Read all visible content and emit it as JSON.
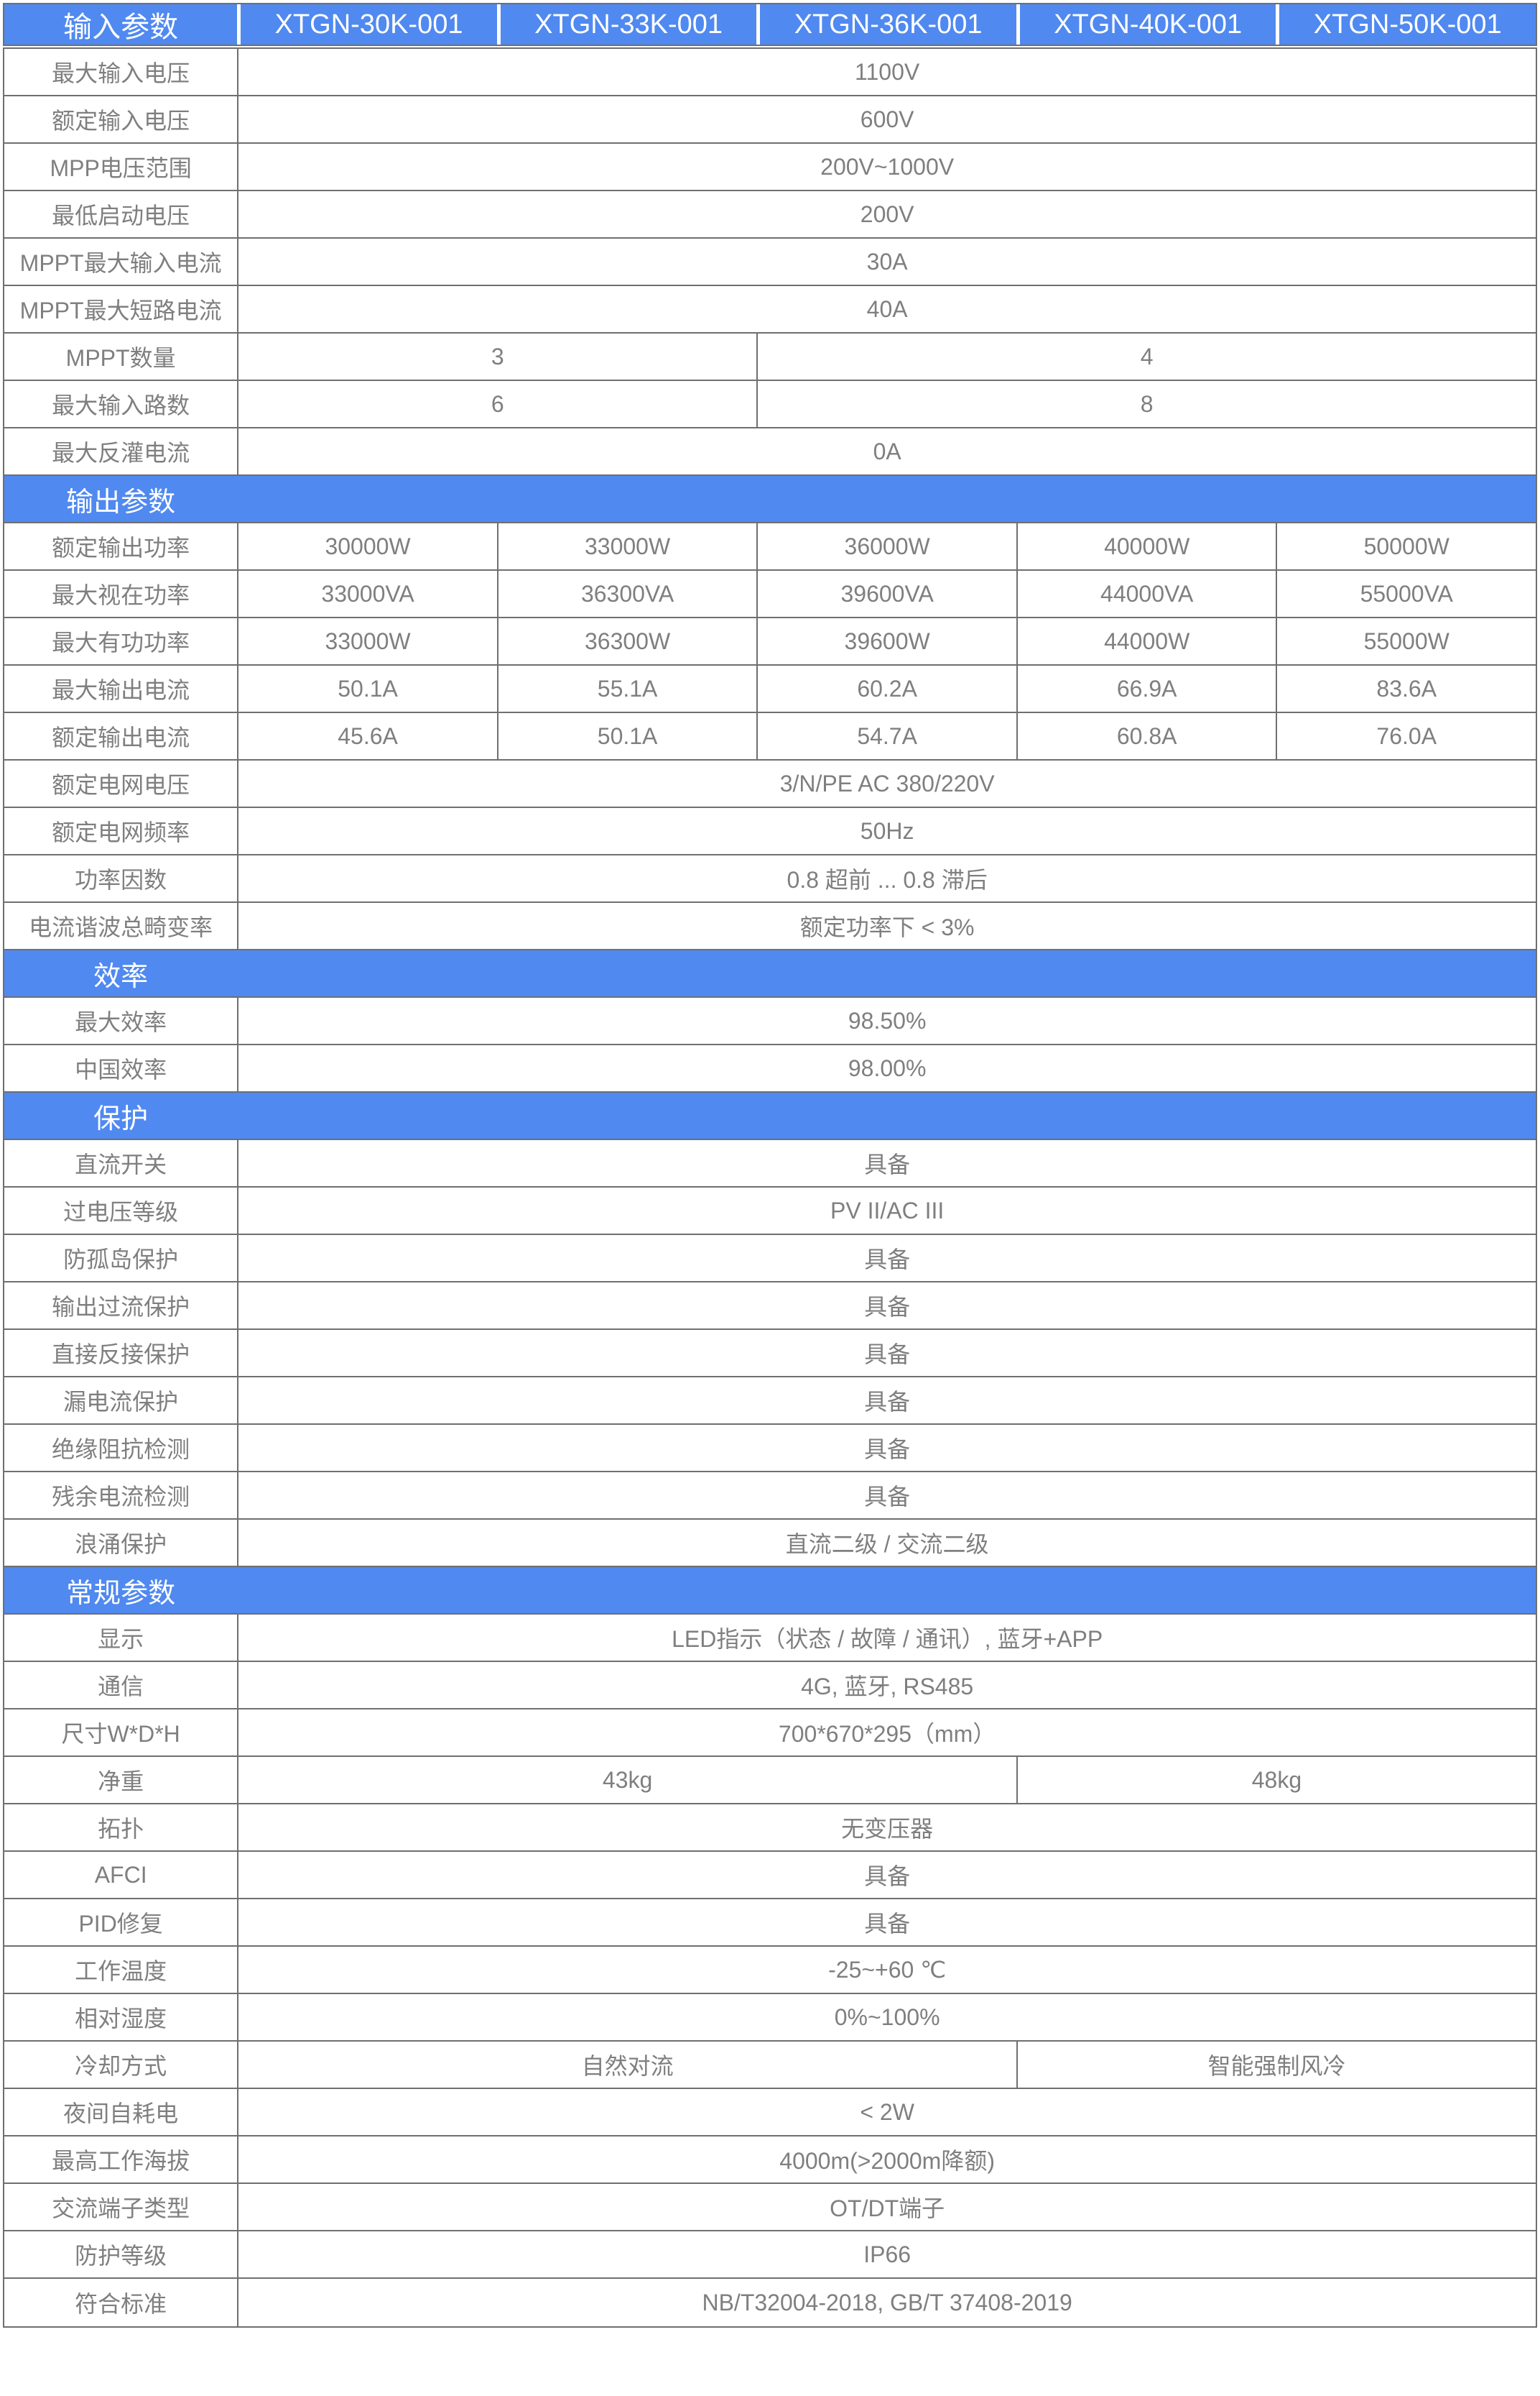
{
  "colors": {
    "accent_blue": "#5089f0",
    "grid_line": "#6f6f6f",
    "cell_text": "#7f7f7f",
    "header_text": "#ffffff"
  },
  "table": {
    "header": {
      "title": "输入参数",
      "models": [
        "XTGN-30K-001",
        "XTGN-33K-001",
        "XTGN-36K-001",
        "XTGN-40K-001",
        "XTGN-50K-001"
      ]
    },
    "groups": [
      {
        "section": null,
        "rows": [
          {
            "label": "最大输入电压",
            "cells": [
              {
                "text": "1100V",
                "span": 5
              }
            ]
          },
          {
            "label": "额定输入电压",
            "cells": [
              {
                "text": "600V",
                "span": 5
              }
            ]
          },
          {
            "label": "MPP电压范围",
            "cells": [
              {
                "text": "200V~1000V",
                "span": 5
              }
            ]
          },
          {
            "label": "最低启动电压",
            "cells": [
              {
                "text": "200V",
                "span": 5
              }
            ]
          },
          {
            "label": "MPPT最大输入电流",
            "cells": [
              {
                "text": "30A",
                "span": 5
              }
            ]
          },
          {
            "label": "MPPT最大短路电流",
            "cells": [
              {
                "text": "40A",
                "span": 5
              }
            ]
          },
          {
            "label": "MPPT数量",
            "cells": [
              {
                "text": "3",
                "span": 2
              },
              {
                "text": "4",
                "span": 3
              }
            ]
          },
          {
            "label": "最大输入路数",
            "cells": [
              {
                "text": "6",
                "span": 2
              },
              {
                "text": "8",
                "span": 3
              }
            ]
          },
          {
            "label": "最大反灌电流",
            "cells": [
              {
                "text": "0A",
                "span": 5
              }
            ]
          }
        ]
      },
      {
        "section": "输出参数",
        "rows": [
          {
            "label": "额定输出功率",
            "cells": [
              {
                "text": "30000W",
                "span": 1
              },
              {
                "text": "33000W",
                "span": 1
              },
              {
                "text": "36000W",
                "span": 1
              },
              {
                "text": "40000W",
                "span": 1
              },
              {
                "text": "50000W",
                "span": 1
              }
            ]
          },
          {
            "label": "最大视在功率",
            "cells": [
              {
                "text": "33000VA",
                "span": 1
              },
              {
                "text": "36300VA",
                "span": 1
              },
              {
                "text": "39600VA",
                "span": 1
              },
              {
                "text": "44000VA",
                "span": 1
              },
              {
                "text": "55000VA",
                "span": 1
              }
            ]
          },
          {
            "label": "最大有功功率",
            "cells": [
              {
                "text": "33000W",
                "span": 1
              },
              {
                "text": "36300W",
                "span": 1
              },
              {
                "text": "39600W",
                "span": 1
              },
              {
                "text": "44000W",
                "span": 1
              },
              {
                "text": "55000W",
                "span": 1
              }
            ]
          },
          {
            "label": "最大输出电流",
            "cells": [
              {
                "text": "50.1A",
                "span": 1
              },
              {
                "text": "55.1A",
                "span": 1
              },
              {
                "text": "60.2A",
                "span": 1
              },
              {
                "text": "66.9A",
                "span": 1
              },
              {
                "text": "83.6A",
                "span": 1
              }
            ]
          },
          {
            "label": "额定输出电流",
            "cells": [
              {
                "text": "45.6A",
                "span": 1
              },
              {
                "text": "50.1A",
                "span": 1
              },
              {
                "text": "54.7A",
                "span": 1
              },
              {
                "text": "60.8A",
                "span": 1
              },
              {
                "text": "76.0A",
                "span": 1
              }
            ]
          },
          {
            "label": "额定电网电压",
            "cells": [
              {
                "text": "3/N/PE AC 380/220V",
                "span": 5
              }
            ]
          },
          {
            "label": "额定电网频率",
            "cells": [
              {
                "text": "50Hz",
                "span": 5
              }
            ]
          },
          {
            "label": "功率因数",
            "cells": [
              {
                "text": "0.8 超前 ... 0.8 滞后",
                "span": 5
              }
            ]
          },
          {
            "label": "电流谐波总畸变率",
            "cells": [
              {
                "text": "额定功率下 < 3%",
                "span": 5
              }
            ]
          }
        ]
      },
      {
        "section": "效率",
        "rows": [
          {
            "label": "最大效率",
            "cells": [
              {
                "text": "98.50%",
                "span": 5
              }
            ]
          },
          {
            "label": "中国效率",
            "cells": [
              {
                "text": "98.00%",
                "span": 5
              }
            ]
          }
        ]
      },
      {
        "section": "保护",
        "rows": [
          {
            "label": "直流开关",
            "cells": [
              {
                "text": "具备",
                "span": 5
              }
            ]
          },
          {
            "label": "过电压等级",
            "cells": [
              {
                "text": "PV II/AC III",
                "span": 5
              }
            ]
          },
          {
            "label": "防孤岛保护",
            "cells": [
              {
                "text": "具备",
                "span": 5
              }
            ]
          },
          {
            "label": "输出过流保护",
            "cells": [
              {
                "text": "具备",
                "span": 5
              }
            ]
          },
          {
            "label": "直接反接保护",
            "cells": [
              {
                "text": "具备",
                "span": 5
              }
            ]
          },
          {
            "label": "漏电流保护",
            "cells": [
              {
                "text": "具备",
                "span": 5
              }
            ]
          },
          {
            "label": "绝缘阻抗检测",
            "cells": [
              {
                "text": "具备",
                "span": 5
              }
            ]
          },
          {
            "label": "残余电流检测",
            "cells": [
              {
                "text": "具备",
                "span": 5
              }
            ]
          },
          {
            "label": "浪涌保护",
            "cells": [
              {
                "text": "直流二级 / 交流二级",
                "span": 5
              }
            ]
          }
        ]
      },
      {
        "section": "常规参数",
        "rows": [
          {
            "label": "显示",
            "cells": [
              {
                "text": "LED指示（状态 / 故障 / 通讯）, 蓝牙+APP",
                "span": 5
              }
            ]
          },
          {
            "label": "通信",
            "cells": [
              {
                "text": "4G, 蓝牙, RS485",
                "span": 5
              }
            ]
          },
          {
            "label": "尺寸W*D*H",
            "cells": [
              {
                "text": "700*670*295（mm）",
                "span": 5
              }
            ]
          },
          {
            "label": "净重",
            "cells": [
              {
                "text": "43kg",
                "span": 3
              },
              {
                "text": "48kg",
                "span": 2
              }
            ]
          },
          {
            "label": "拓扑",
            "cells": [
              {
                "text": "无变压器",
                "span": 5
              }
            ]
          },
          {
            "label": "AFCI",
            "cells": [
              {
                "text": "具备",
                "span": 5
              }
            ]
          },
          {
            "label": "PID修复",
            "cells": [
              {
                "text": "具备",
                "span": 5
              }
            ]
          },
          {
            "label": "工作温度",
            "cells": [
              {
                "text": "-25~+60 ℃",
                "span": 5
              }
            ]
          },
          {
            "label": "相对湿度",
            "cells": [
              {
                "text": "0%~100%",
                "span": 5
              }
            ]
          },
          {
            "label": "冷却方式",
            "cells": [
              {
                "text": "自然对流",
                "span": 3
              },
              {
                "text": "智能强制风冷",
                "span": 2
              }
            ]
          },
          {
            "label": "夜间自耗电",
            "cells": [
              {
                "text": "< 2W",
                "span": 5
              }
            ]
          },
          {
            "label": "最高工作海拔",
            "cells": [
              {
                "text": "4000m(>2000m降额)",
                "span": 5
              }
            ]
          },
          {
            "label": "交流端子类型",
            "cells": [
              {
                "text": "OT/DT端子",
                "span": 5
              }
            ]
          },
          {
            "label": "防护等级",
            "cells": [
              {
                "text": "IP66",
                "span": 5
              }
            ]
          },
          {
            "label": "符合标准",
            "cells": [
              {
                "text": "NB/T32004-2018, GB/T 37408-2019",
                "span": 5
              }
            ]
          }
        ]
      }
    ]
  }
}
